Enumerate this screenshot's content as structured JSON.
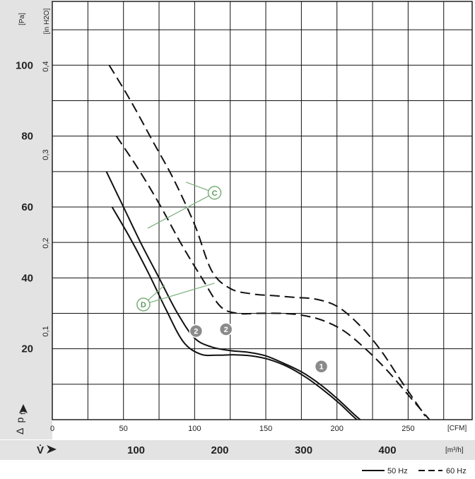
{
  "chart_data": {
    "type": "line",
    "title": "",
    "x_units": {
      "primary": "[CFM]",
      "secondary": "[m³/h]"
    },
    "y_units": {
      "primary": "[Pa]",
      "secondary": "[in H2O]"
    },
    "ylabel": {
      "delta": "Δ",
      "p": "p",
      "sub": "fa"
    },
    "xlabel": "V̇",
    "xlim_cfm": [
      0,
      295
    ],
    "ylim_pa": [
      0,
      118
    ],
    "cfm_ticks": [
      "0",
      "50",
      "100",
      "150",
      "200",
      "250"
    ],
    "cfm_tick_values": [
      0,
      50,
      100,
      150,
      200,
      250
    ],
    "m3h_ticks": [
      "100",
      "200",
      "300",
      "400"
    ],
    "m3h_tick_values": [
      100,
      200,
      300,
      400
    ],
    "pa_ticks": [
      "20",
      "40",
      "60",
      "80",
      "100"
    ],
    "pa_tick_values": [
      20,
      40,
      60,
      80,
      100
    ],
    "inh2o_ticks": [
      "0,1",
      "0,2",
      "0,3",
      "0,4"
    ],
    "inh2o_tick_values": [
      0.1,
      0.2,
      0.3,
      0.4
    ],
    "grid": true,
    "legend": {
      "position": "bottom-right",
      "entries": [
        {
          "label": "50 Hz",
          "style": "solid"
        },
        {
          "label": "60 Hz",
          "style": "dashed"
        }
      ]
    },
    "series": [
      {
        "style": "solid",
        "x": [
          38,
          50,
          62,
          75,
          88,
          100,
          112,
          125,
          138,
          150,
          162,
          175,
          188,
          200,
          212,
          225
        ],
        "y": [
          70,
          60,
          50,
          40,
          30,
          23,
          20.5,
          19.5,
          19,
          18,
          16,
          13.5,
          10,
          6,
          1.5,
          -3
        ]
      },
      {
        "style": "solid",
        "x": [
          42,
          55,
          68,
          80,
          92,
          104,
          116,
          128,
          140,
          152,
          165,
          178,
          190,
          202,
          214,
          228
        ],
        "y": [
          60,
          51,
          41,
          31,
          22,
          18.5,
          18.2,
          18.3,
          18,
          17,
          15,
          12,
          8.5,
          4.5,
          0,
          -4
        ]
      },
      {
        "style": "dashed",
        "x": [
          40,
          55,
          70,
          85,
          100,
          112,
          125,
          140,
          155,
          170,
          185,
          200,
          215,
          230,
          245,
          262
        ],
        "y": [
          100,
          90,
          79,
          68,
          55,
          42,
          37,
          35.5,
          35,
          34.5,
          34,
          32,
          27,
          20,
          11,
          1
        ]
      },
      {
        "style": "dashed",
        "x": [
          45,
          60,
          75,
          90,
          105,
          118,
          130,
          145,
          160,
          175,
          190,
          205,
          220,
          235,
          250,
          265
        ],
        "y": [
          80,
          71,
          61,
          50,
          40,
          32,
          30,
          30,
          30,
          29.5,
          28,
          25,
          20,
          14,
          7,
          0
        ]
      }
    ],
    "markers": [
      {
        "label": "1",
        "x": 189,
        "y": 15,
        "style": "filled"
      },
      {
        "label": "2",
        "x": 101,
        "y": 25,
        "style": "filled"
      },
      {
        "label": "2",
        "x": 122,
        "y": 25.5,
        "style": "filled"
      },
      {
        "label": "C",
        "x": 114,
        "y": 64,
        "style": "outline"
      },
      {
        "label": "D",
        "x": 64,
        "y": 32.5,
        "style": "outline"
      }
    ],
    "callouts": [
      {
        "from": "C",
        "to": [
          [
            94,
            67
          ],
          [
            67,
            54
          ]
        ]
      },
      {
        "from": "D",
        "to": [
          [
            79,
            38
          ],
          [
            114,
            38.5
          ]
        ]
      }
    ]
  }
}
